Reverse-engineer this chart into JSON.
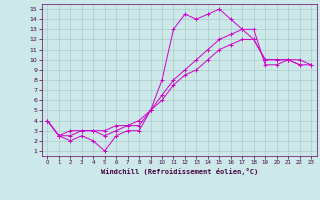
{
  "title": "",
  "xlabel": "Windchill (Refroidissement éolien,°C)",
  "ylabel": "",
  "bg_color": "#cce8e8",
  "grid_color": "#aacccc",
  "line_color": "#cc00cc",
  "xlim": [
    -0.5,
    23.5
  ],
  "ylim": [
    0.5,
    15.5
  ],
  "xticks": [
    0,
    1,
    2,
    3,
    4,
    5,
    6,
    7,
    8,
    9,
    10,
    11,
    12,
    13,
    14,
    15,
    16,
    17,
    18,
    19,
    20,
    21,
    22,
    23
  ],
  "yticks": [
    1,
    2,
    3,
    4,
    5,
    6,
    7,
    8,
    9,
    10,
    11,
    12,
    13,
    14,
    15
  ],
  "curves": [
    {
      "x": [
        0,
        1,
        2,
        3,
        4,
        5,
        6,
        7,
        8,
        9,
        10,
        11,
        12,
        13,
        14,
        15,
        16,
        17,
        18,
        19,
        20,
        21,
        22
      ],
      "y": [
        4,
        2.5,
        2,
        2.5,
        2,
        1,
        2.5,
        3,
        3,
        5,
        8,
        13,
        14.5,
        14,
        14.5,
        15,
        14,
        13,
        12,
        10,
        10,
        10,
        9.5
      ]
    },
    {
      "x": [
        0,
        1,
        2,
        3,
        4,
        5,
        6,
        7,
        8,
        9,
        10,
        11,
        12,
        13,
        14,
        15,
        16,
        17,
        18,
        19,
        20,
        21,
        22,
        23
      ],
      "y": [
        4,
        2.5,
        2.5,
        3,
        3,
        2.5,
        3,
        3.5,
        3.5,
        5,
        6.5,
        8,
        9,
        10,
        11,
        12,
        12.5,
        13,
        13,
        9.5,
        9.5,
        10,
        10,
        9.5
      ]
    },
    {
      "x": [
        0,
        1,
        2,
        3,
        4,
        5,
        6,
        7,
        8,
        9,
        10,
        11,
        12,
        13,
        14,
        15,
        16,
        17,
        18,
        19,
        20,
        21,
        22,
        23
      ],
      "y": [
        4,
        2.5,
        3,
        3,
        3,
        3,
        3.5,
        3.5,
        4,
        5,
        6,
        7.5,
        8.5,
        9,
        10,
        11,
        11.5,
        12,
        12,
        10,
        10,
        10,
        9.5,
        9.5
      ]
    }
  ]
}
